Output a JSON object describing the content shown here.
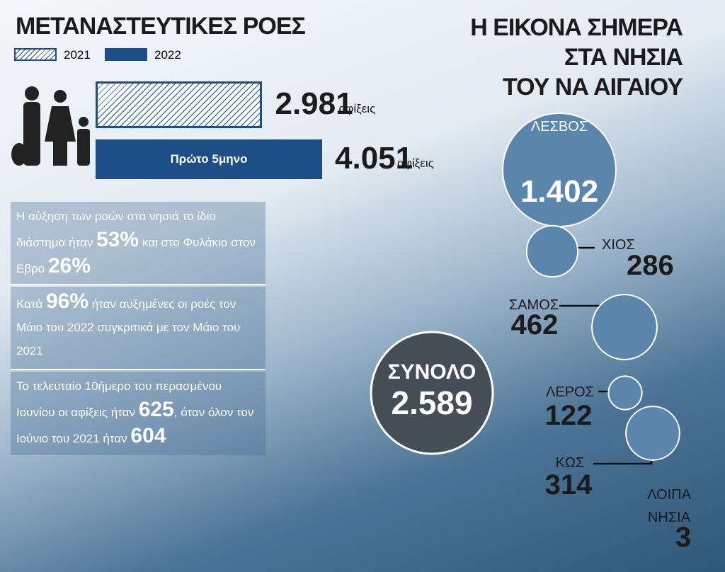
{
  "title": "ΜΕΤΑΝΑΣΤΕΥΤΙΚΕΣ ΡΟΕΣ",
  "arrivals": [
    {
      "name": "2021",
      "value": 2981,
      "value_label": "2.981",
      "unit": "αφίξεις"
    },
    {
      "name": "2022",
      "value": 4051,
      "value_label": "4.051",
      "unit": "αφίξεις",
      "bar_label": "Πρώτο 5μηνο"
    }
  ],
  "facts": [
    [
      "Η αύξηση των ροών στα νησιά το ίδιο διάστημα ήταν ",
      "53%",
      " και στο Φυλάκιο στον Εβρο ",
      "26%"
    ],
    [
      "Κατά ",
      "96%",
      " ήταν αυξημένες οι ροές τον Μάιο του 2022 συγκριτικά με τον Μάιο του 2021"
    ],
    [
      "Το τελευταίο 10ήμερο του περασμένου Ιουνίου οι αφίξεις ήταν ",
      "625",
      ", όταν όλον τον Ιούνιο του 2021 ήταν ",
      "604"
    ]
  ],
  "islands_title": [
    "Η ΕΙΚΟΝΑ ΣΗΜΕΡΑ",
    "ΣΤΑ ΝΗΣΙΑ",
    "ΤΟΥ ΝΑ ΑΙΓΑΙΟΥ"
  ],
  "islands": [
    {
      "name": "ΛΕΣΒΟΣ",
      "value": 1402,
      "value_label": "1.402"
    },
    {
      "name": "ΧΙΟΣ",
      "value": 286
    },
    {
      "name": "ΣΑΜΟΣ",
      "value": 462
    },
    {
      "name": "ΛΕΡΟΣ",
      "value": 122
    },
    {
      "name": "ΚΩΣ",
      "value": 314
    },
    {
      "name": "ΛΟΙΠΑ ΝΗΣΙΑ",
      "value": 3
    }
  ],
  "total": {
    "label": "ΣΥΝΟΛΟ",
    "value": 2589,
    "value_label": "2.589"
  }
}
